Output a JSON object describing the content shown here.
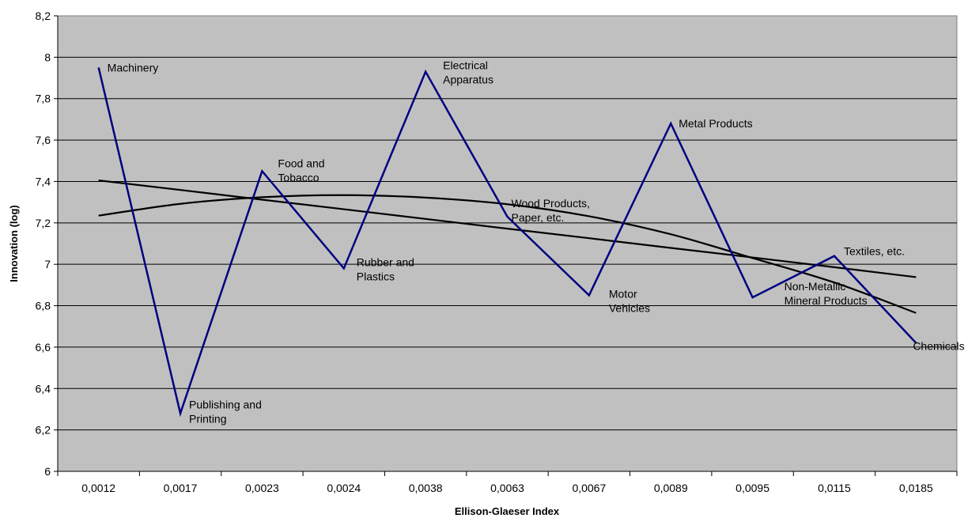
{
  "chart_data": {
    "type": "line",
    "categories": [
      "0,0012",
      "0,0017",
      "0,0023",
      "0,0024",
      "0,0038",
      "0,0063",
      "0,0067",
      "0,0089",
      "0,0095",
      "0,0115",
      "0,0185"
    ],
    "series": [
      {
        "values": [
          7.95,
          6.28,
          7.45,
          6.98,
          7.93,
          7.23,
          6.85,
          7.68,
          6.84,
          7.04,
          6.62
        ],
        "color": "#000080",
        "labels": [
          [
            "Machinery"
          ],
          [
            "Publishing and",
            "Printing"
          ],
          [
            "Food and",
            "Tobacco"
          ],
          [
            "Rubber and",
            "Plastics"
          ],
          [
            "Electrical",
            "Apparatus"
          ],
          [
            "Wood Products,",
            "Paper, etc."
          ],
          [
            "Motor",
            "Vehicles"
          ],
          [
            "Metal Products"
          ],
          [
            "Non-Metallic",
            "Mineral Products"
          ],
          [
            "Textiles, etc."
          ],
          [
            "Chemicals"
          ]
        ]
      },
      {
        "type": "linear trendline",
        "values": [
          7.405,
          7.359,
          7.312,
          7.266,
          7.219,
          7.172,
          7.126,
          7.079,
          7.033,
          6.986,
          6.938
        ],
        "color": "#000000"
      },
      {
        "type": "polynomial trendline",
        "values": [
          7.235,
          7.292,
          7.324,
          7.334,
          7.322,
          7.29,
          7.232,
          7.145,
          7.03,
          6.912,
          6.765
        ],
        "color": "#000000"
      }
    ],
    "xlabel": "Ellison-Glaeser Index",
    "ylabel": "Innovation (log)",
    "yticks": [
      "6",
      "6,2",
      "6,4",
      "6,6",
      "6,8",
      "7",
      "7,2",
      "7,4",
      "7,6",
      "7,8",
      "8",
      "8,2"
    ],
    "ylim": [
      6,
      8.2
    ],
    "grid": true,
    "plot_background": "#c0c0c0",
    "legend": "none"
  }
}
